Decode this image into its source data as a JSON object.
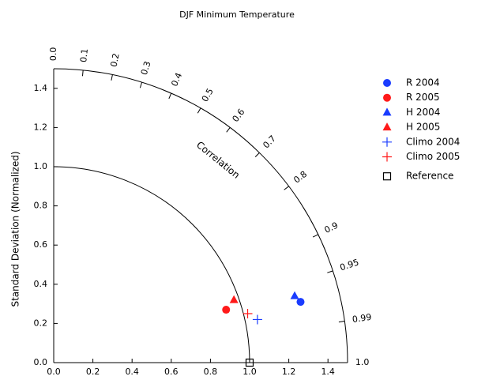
{
  "chart_data": {
    "type": "taylor",
    "title": "DJF Minimum Temperature",
    "ylabel": "Standard Deviation (Normalized)",
    "corr_label": "Correlation",
    "xlim": [
      0,
      1.5
    ],
    "ylim": [
      0,
      1.5
    ],
    "xticks": [
      {
        "value": 0,
        "label": "0.0"
      },
      0.2,
      0.4,
      0.6,
      0.8,
      {
        "value": 1,
        "label": "1.0"
      },
      1.2,
      1.4
    ],
    "yticks": [
      {
        "value": 0,
        "label": "0.0"
      },
      0.2,
      0.4,
      0.6,
      0.8,
      {
        "value": 1,
        "label": "1.0"
      },
      1.2,
      1.4
    ],
    "corrticks": [
      {
        "value": 0,
        "label": "0.0"
      },
      0.1,
      0.2,
      0.3,
      0.4,
      0.5,
      0.6,
      0.7,
      0.8,
      0.9,
      0.95,
      0.99,
      {
        "value": 1,
        "label": "1.0"
      }
    ],
    "ref_radius": 1,
    "series": [
      {
        "name": "R 2004",
        "color": "#1a3cff",
        "marker": "circle",
        "x": [
          1.26
        ],
        "y": [
          0.31
        ]
      },
      {
        "name": "R 2005",
        "color": "#ff1a1a",
        "marker": "circle",
        "x": [
          0.88
        ],
        "y": [
          0.27
        ]
      },
      {
        "name": "H 2004",
        "color": "#1a3cff",
        "marker": "triangle",
        "x": [
          1.23
        ],
        "y": [
          0.34
        ]
      },
      {
        "name": "H 2005",
        "color": "#ff1a1a",
        "marker": "triangle",
        "x": [
          0.92
        ],
        "y": [
          0.32
        ]
      },
      {
        "name": "Climo 2004",
        "color": "#1a3cff",
        "marker": "plus",
        "x": [
          1.04
        ],
        "y": [
          0.22
        ]
      },
      {
        "name": "Climo 2005",
        "color": "#ff1a1a",
        "marker": "plus",
        "x": [
          0.99
        ],
        "y": [
          0.25
        ]
      }
    ],
    "reference": {
      "name": "Reference",
      "color": "#000000",
      "marker": "square",
      "x": 1,
      "y": 0
    }
  }
}
